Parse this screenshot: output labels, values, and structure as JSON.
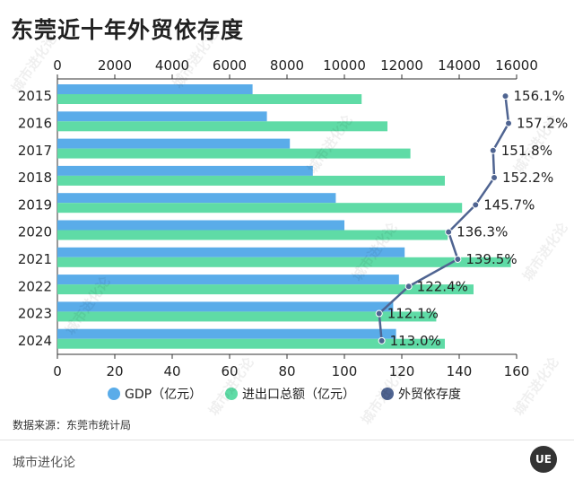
{
  "title": "东莞近十年外贸依存度",
  "source": "数据来源：东莞市统计局",
  "brand": "城市进化论",
  "logo": "UE",
  "watermark": "城市进化论",
  "colors": {
    "gdp": "#5aace9",
    "trade": "#5fdba6",
    "dependency": "#4f6491"
  },
  "chart_data": {
    "type": "bar",
    "orientation": "horizontal",
    "categories": [
      "2015",
      "2016",
      "2017",
      "2018",
      "2019",
      "2020",
      "2021",
      "2022",
      "2023",
      "2024"
    ],
    "series": [
      {
        "name": "GDP（亿元）",
        "axis": "top",
        "values": [
          6800,
          7300,
          8100,
          8900,
          9700,
          10000,
          12100,
          11900,
          11700,
          11800
        ]
      },
      {
        "name": "进出口总额（亿元）",
        "axis": "top",
        "values": [
          10600,
          11500,
          12300,
          13500,
          14100,
          13600,
          15800,
          14500,
          13200,
          13500
        ]
      },
      {
        "name": "外贸依存度",
        "type": "line",
        "axis": "bottom",
        "values": [
          156.1,
          157.2,
          151.8,
          152.2,
          145.7,
          136.3,
          139.5,
          122.4,
          112.1,
          113.0
        ],
        "labels": [
          "156.1%",
          "157.2%",
          "151.8%",
          "152.2%",
          "145.7%",
          "136.3%",
          "139.5%",
          "122.4%",
          "112.1%",
          "113.0%"
        ]
      }
    ],
    "top_axis": {
      "range": [
        0,
        16000
      ],
      "ticks": [
        "0",
        "2000",
        "4000",
        "6000",
        "8000",
        "10000",
        "12000",
        "14000",
        "16000"
      ]
    },
    "bottom_axis": {
      "range": [
        0,
        160
      ],
      "ticks": [
        "0",
        "20",
        "40",
        "60",
        "80",
        "100",
        "120",
        "140",
        "160"
      ]
    },
    "legend_position": "bottom"
  }
}
